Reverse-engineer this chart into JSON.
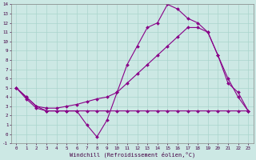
{
  "xlabel": "Windchill (Refroidissement éolien,°C)",
  "x_hours": [
    0,
    1,
    2,
    3,
    4,
    5,
    6,
    7,
    8,
    9,
    10,
    11,
    12,
    13,
    14,
    15,
    16,
    17,
    18,
    19,
    20,
    21,
    22,
    23
  ],
  "line1": [
    5.0,
    4.0,
    3.0,
    2.5,
    2.5,
    2.5,
    2.5,
    1.0,
    -0.3,
    1.5,
    4.5,
    7.5,
    9.5,
    11.5,
    12.0,
    14.0,
    13.5,
    12.5,
    12.0,
    11.0,
    8.5,
    5.5,
    4.5,
    2.5
  ],
  "line2": [
    5.0,
    3.8,
    2.8,
    2.5,
    2.5,
    2.5,
    2.5,
    2.5,
    2.5,
    2.5,
    2.5,
    2.5,
    2.5,
    2.5,
    2.5,
    2.5,
    2.5,
    2.5,
    2.5,
    2.5,
    2.5,
    2.5,
    2.5,
    2.5
  ],
  "line3": [
    5.0,
    4.0,
    3.0,
    2.8,
    2.8,
    3.0,
    3.2,
    3.5,
    3.8,
    4.0,
    4.5,
    5.5,
    6.5,
    7.5,
    8.5,
    9.5,
    10.5,
    11.5,
    11.5,
    11.0,
    8.5,
    6.0,
    4.0,
    2.5
  ],
  "bg_color": "#cce8e4",
  "grid_color": "#aad4cc",
  "line_color": "#880088",
  "ylim": [
    -1,
    14
  ],
  "xlim": [
    -0.5,
    23.5
  ],
  "yticks": [
    -1,
    0,
    1,
    2,
    3,
    4,
    5,
    6,
    7,
    8,
    9,
    10,
    11,
    12,
    13,
    14
  ],
  "xticks": [
    0,
    1,
    2,
    3,
    4,
    5,
    6,
    7,
    8,
    9,
    10,
    11,
    12,
    13,
    14,
    15,
    16,
    17,
    18,
    19,
    20,
    21,
    22,
    23
  ]
}
